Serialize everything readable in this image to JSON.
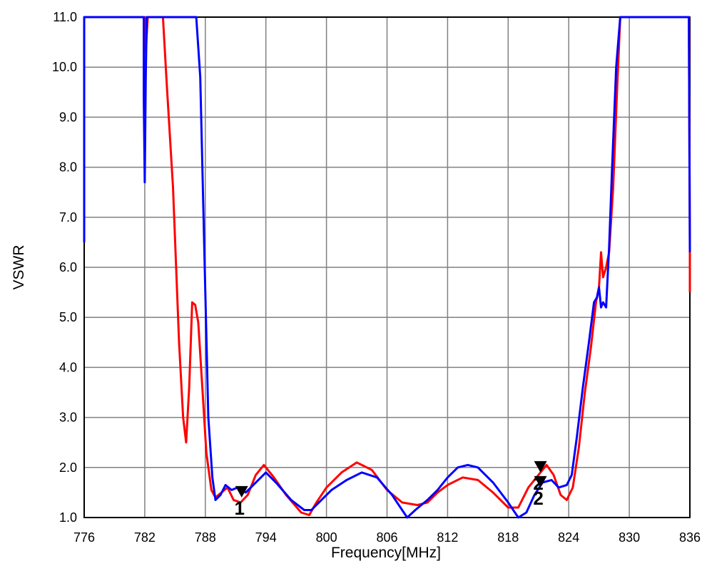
{
  "chart_data": {
    "type": "line",
    "xlabel": "Frequency[MHz]",
    "ylabel": "VSWR",
    "xlim": [
      776,
      836
    ],
    "ylim": [
      1.0,
      11.0
    ],
    "x_ticks": [
      "776",
      "782",
      "788",
      "794",
      "800",
      "806",
      "812",
      "818",
      "824",
      "830",
      "836"
    ],
    "y_ticks": [
      "1.0",
      "2.0",
      "3.0",
      "4.0",
      "5.0",
      "6.0",
      "7.0",
      "8.0",
      "9.0",
      "10.0",
      "11.0"
    ],
    "grid": true,
    "series": [
      {
        "color": "#ff0000",
        "points": [
          [
            776.0,
            11.0
          ],
          [
            782.0,
            11.0
          ],
          [
            782.1,
            10.3
          ],
          [
            782.3,
            11.0
          ],
          [
            783.8,
            11.0
          ],
          [
            784.2,
            9.6
          ],
          [
            784.8,
            7.6
          ],
          [
            785.4,
            4.5
          ],
          [
            785.8,
            3.0
          ],
          [
            786.1,
            2.5
          ],
          [
            786.4,
            3.6
          ],
          [
            786.7,
            5.3
          ],
          [
            787.0,
            5.25
          ],
          [
            787.3,
            4.9
          ],
          [
            787.7,
            3.6
          ],
          [
            788.1,
            2.3
          ],
          [
            788.6,
            1.55
          ],
          [
            789.0,
            1.4
          ],
          [
            789.6,
            1.5
          ],
          [
            790.2,
            1.6
          ],
          [
            790.8,
            1.35
          ],
          [
            791.5,
            1.3
          ],
          [
            792.2,
            1.45
          ],
          [
            793.0,
            1.85
          ],
          [
            793.8,
            2.05
          ],
          [
            794.8,
            1.8
          ],
          [
            796.0,
            1.45
          ],
          [
            797.5,
            1.1
          ],
          [
            798.3,
            1.05
          ],
          [
            799.0,
            1.3
          ],
          [
            800.0,
            1.6
          ],
          [
            801.5,
            1.9
          ],
          [
            803.0,
            2.1
          ],
          [
            804.5,
            1.95
          ],
          [
            806.0,
            1.55
          ],
          [
            807.5,
            1.3
          ],
          [
            809.0,
            1.25
          ],
          [
            810.0,
            1.3
          ],
          [
            811.0,
            1.5
          ],
          [
            812.0,
            1.65
          ],
          [
            813.5,
            1.8
          ],
          [
            815.0,
            1.75
          ],
          [
            816.5,
            1.5
          ],
          [
            818.0,
            1.2
          ],
          [
            819.0,
            1.2
          ],
          [
            820.0,
            1.6
          ],
          [
            820.8,
            1.8
          ],
          [
            821.8,
            2.05
          ],
          [
            822.5,
            1.85
          ],
          [
            823.2,
            1.45
          ],
          [
            823.8,
            1.35
          ],
          [
            824.4,
            1.6
          ],
          [
            825.0,
            2.4
          ],
          [
            825.6,
            3.5
          ],
          [
            826.2,
            4.4
          ],
          [
            826.7,
            5.3
          ],
          [
            827.0,
            5.6
          ],
          [
            827.2,
            6.3
          ],
          [
            827.4,
            5.8
          ],
          [
            827.7,
            6.0
          ],
          [
            828.0,
            6.3
          ],
          [
            828.4,
            7.6
          ],
          [
            828.8,
            9.6
          ],
          [
            829.1,
            11.0
          ],
          [
            835.9,
            11.0
          ],
          [
            836.0,
            6.5
          ],
          [
            836.0,
            5.5
          ]
        ]
      },
      {
        "color": "#0000ff",
        "points": [
          [
            776.0,
            6.5
          ],
          [
            776.0,
            11.0
          ],
          [
            781.9,
            11.0
          ],
          [
            781.9,
            9.4
          ],
          [
            782.0,
            7.7
          ],
          [
            782.1,
            9.8
          ],
          [
            782.2,
            11.0
          ],
          [
            787.1,
            11.0
          ],
          [
            787.5,
            9.8
          ],
          [
            788.0,
            5.5
          ],
          [
            788.3,
            3.0
          ],
          [
            788.7,
            1.8
          ],
          [
            789.0,
            1.35
          ],
          [
            789.5,
            1.45
          ],
          [
            790.0,
            1.65
          ],
          [
            790.6,
            1.55
          ],
          [
            791.2,
            1.6
          ],
          [
            792.0,
            1.5
          ],
          [
            793.0,
            1.7
          ],
          [
            794.0,
            1.9
          ],
          [
            795.0,
            1.7
          ],
          [
            796.5,
            1.35
          ],
          [
            797.8,
            1.15
          ],
          [
            798.5,
            1.15
          ],
          [
            799.5,
            1.35
          ],
          [
            800.5,
            1.55
          ],
          [
            802.0,
            1.75
          ],
          [
            803.5,
            1.9
          ],
          [
            805.0,
            1.8
          ],
          [
            806.5,
            1.45
          ],
          [
            807.5,
            1.15
          ],
          [
            808.0,
            1.0
          ],
          [
            808.8,
            1.15
          ],
          [
            810.0,
            1.35
          ],
          [
            811.0,
            1.55
          ],
          [
            812.0,
            1.8
          ],
          [
            813.0,
            2.0
          ],
          [
            814.0,
            2.05
          ],
          [
            815.0,
            2.0
          ],
          [
            816.5,
            1.7
          ],
          [
            818.0,
            1.3
          ],
          [
            819.0,
            1.0
          ],
          [
            819.8,
            1.1
          ],
          [
            820.6,
            1.45
          ],
          [
            821.4,
            1.7
          ],
          [
            822.3,
            1.75
          ],
          [
            823.0,
            1.6
          ],
          [
            823.8,
            1.65
          ],
          [
            824.3,
            1.85
          ],
          [
            824.8,
            2.6
          ],
          [
            825.4,
            3.6
          ],
          [
            826.0,
            4.5
          ],
          [
            826.5,
            5.3
          ],
          [
            826.8,
            5.4
          ],
          [
            827.0,
            5.6
          ],
          [
            827.2,
            5.2
          ],
          [
            827.4,
            5.3
          ],
          [
            827.7,
            5.2
          ],
          [
            828.0,
            6.4
          ],
          [
            828.3,
            8.0
          ],
          [
            828.7,
            10.0
          ],
          [
            829.1,
            11.0
          ],
          [
            835.9,
            11.0
          ],
          [
            836.0,
            6.3
          ]
        ]
      }
    ],
    "markers": [
      {
        "label": "1",
        "x": 791.6,
        "y": 1.4,
        "color": "#000000"
      },
      {
        "label": "2",
        "x": 821.2,
        "y": 1.9,
        "color": "#000000"
      },
      {
        "label": "2",
        "x": 821.2,
        "y": 1.6,
        "color": "#000000"
      }
    ]
  }
}
